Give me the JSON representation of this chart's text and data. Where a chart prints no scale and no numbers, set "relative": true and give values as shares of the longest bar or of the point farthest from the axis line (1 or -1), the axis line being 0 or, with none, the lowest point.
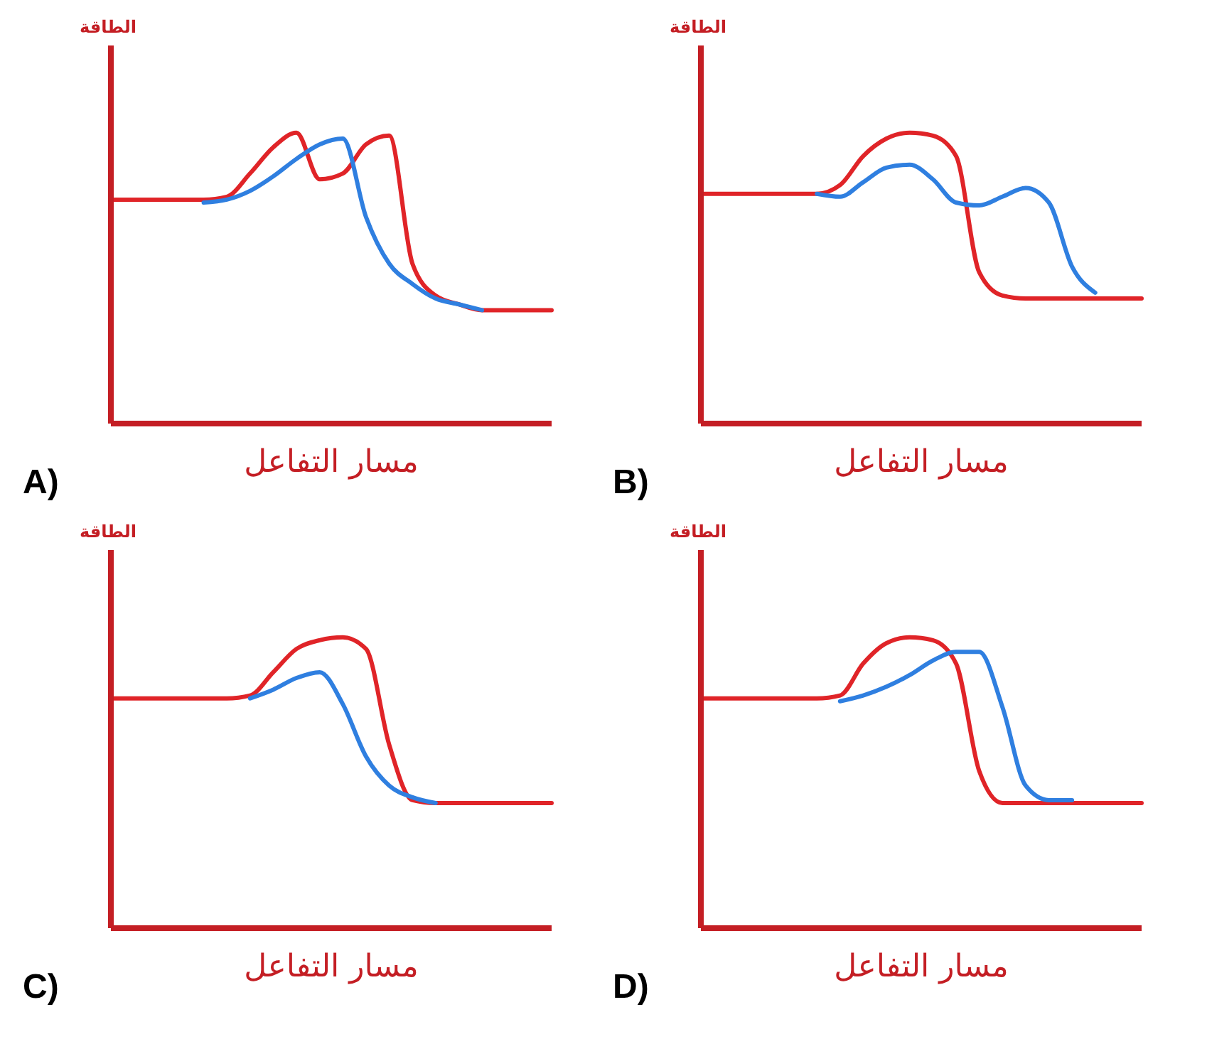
{
  "chart_data": [
    {
      "type": "line",
      "title": "A)",
      "xlabel": "مسار التفاعل",
      "ylabel": "الطاقة",
      "relative": true,
      "categories": [
        null,
        null,
        null,
        null,
        null,
        null,
        null,
        null,
        null,
        null,
        null,
        null,
        null,
        null,
        null,
        null,
        null,
        null,
        null,
        null
      ],
      "series": [
        {
          "color": "#e02428",
          "values": [
            0.77,
            0.77,
            0.77,
            0.77,
            0.77,
            0.78,
            0.86,
            0.95,
            1.0,
            0.84,
            0.86,
            0.96,
            0.99,
            0.55,
            0.44,
            0.41,
            0.39,
            0.39,
            0.39,
            0.39
          ]
        },
        {
          "color": "#2f7fe0",
          "values": [
            null,
            null,
            null,
            null,
            0.76,
            0.77,
            0.8,
            0.85,
            0.91,
            0.96,
            0.98,
            0.71,
            0.55,
            0.48,
            0.43,
            0.41,
            0.39,
            null,
            null,
            null
          ]
        }
      ]
    },
    {
      "type": "line",
      "title": "B)",
      "xlabel": "مسار التفاعل",
      "ylabel": "الطاقة",
      "relative": true,
      "categories": [
        null,
        null,
        null,
        null,
        null,
        null,
        null,
        null,
        null,
        null,
        null,
        null,
        null,
        null,
        null,
        null,
        null,
        null,
        null,
        null
      ],
      "series": [
        {
          "color": "#e02428",
          "values": [
            0.79,
            0.79,
            0.79,
            0.79,
            0.79,
            0.79,
            0.82,
            0.92,
            0.98,
            1.0,
            0.99,
            0.92,
            0.52,
            0.44,
            0.43,
            0.43,
            0.43,
            0.43,
            0.43,
            0.43
          ]
        },
        {
          "color": "#2f7fe0",
          "values": [
            null,
            null,
            null,
            null,
            null,
            0.79,
            0.78,
            0.83,
            0.88,
            0.89,
            0.84,
            0.76,
            0.75,
            0.78,
            0.81,
            0.76,
            0.54,
            0.45,
            null,
            null
          ]
        }
      ]
    },
    {
      "type": "line",
      "title": "C)",
      "xlabel": "مسار التفاعل",
      "ylabel": "الطاقة",
      "relative": true,
      "categories": [
        null,
        null,
        null,
        null,
        null,
        null,
        null,
        null,
        null,
        null,
        null,
        null,
        null,
        null,
        null,
        null,
        null,
        null,
        null,
        null
      ],
      "series": [
        {
          "color": "#e02428",
          "values": [
            0.79,
            0.79,
            0.79,
            0.79,
            0.79,
            0.79,
            0.8,
            0.88,
            0.96,
            0.99,
            1.0,
            0.96,
            0.63,
            0.44,
            0.43,
            0.43,
            0.43,
            0.43,
            0.43,
            0.43
          ]
        },
        {
          "color": "#2f7fe0",
          "values": [
            null,
            null,
            null,
            null,
            null,
            null,
            0.79,
            0.82,
            0.86,
            0.88,
            0.77,
            0.59,
            0.49,
            0.45,
            0.43,
            null,
            null,
            null,
            null,
            null
          ]
        }
      ]
    },
    {
      "type": "line",
      "title": "D)",
      "xlabel": "مسار التفاعل",
      "ylabel": "الطاقة",
      "relative": true,
      "categories": [
        null,
        null,
        null,
        null,
        null,
        null,
        null,
        null,
        null,
        null,
        null,
        null,
        null,
        null,
        null,
        null,
        null,
        null,
        null,
        null
      ],
      "series": [
        {
          "color": "#e02428",
          "values": [
            0.79,
            0.79,
            0.79,
            0.79,
            0.79,
            0.79,
            0.8,
            0.91,
            0.98,
            1.0,
            0.99,
            0.91,
            0.54,
            0.43,
            0.43,
            0.43,
            0.43,
            0.43,
            0.43,
            0.43
          ]
        },
        {
          "color": "#2f7fe0",
          "values": [
            null,
            null,
            null,
            null,
            null,
            null,
            0.78,
            0.8,
            0.83,
            0.87,
            0.92,
            0.95,
            0.95,
            0.76,
            0.49,
            0.44,
            0.44,
            null,
            null,
            null
          ]
        }
      ]
    }
  ]
}
